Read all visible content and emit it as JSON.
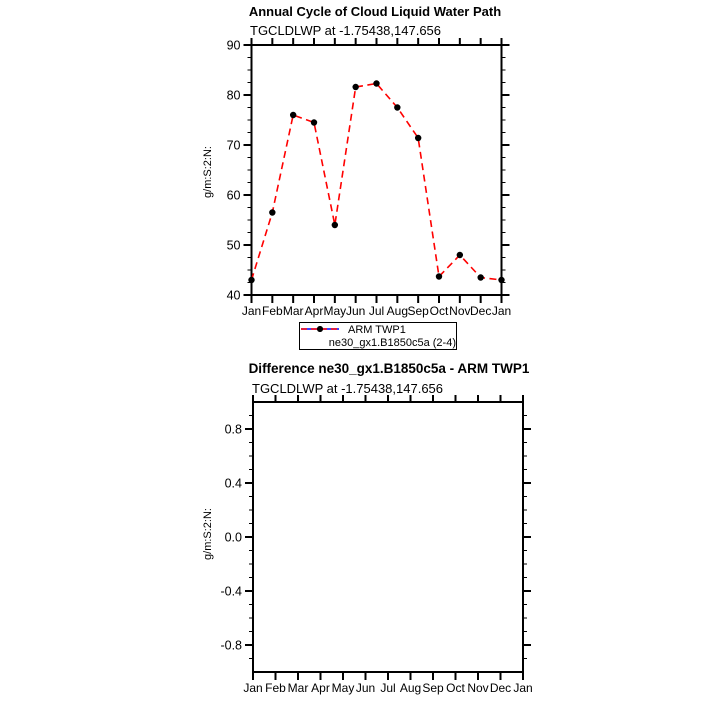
{
  "page": {
    "background": "#ffffff"
  },
  "chart_data": [
    {
      "type": "line",
      "title": "Annual Cycle of Cloud Liquid Water Path",
      "subtitle": "TGCLDLWP at -1.75438,147.656",
      "xlabel": "",
      "ylabel": "g/m:S:2:N:",
      "categories": [
        "Jan",
        "Feb",
        "Mar",
        "Apr",
        "May",
        "Jun",
        "Jul",
        "Aug",
        "Sep",
        "Oct",
        "Nov",
        "Dec",
        "Jan"
      ],
      "ylim": [
        40,
        90
      ],
      "ytick_values": [
        40,
        50,
        60,
        70,
        80,
        90
      ],
      "ytick_labels": [
        "40",
        "50",
        "60",
        "70",
        "80",
        "90"
      ],
      "yminor_step": 2.5,
      "grid": false,
      "legend_position": "below",
      "axis_color": "#000000",
      "series": [
        {
          "name": "ARM TWP1",
          "color": "#0000ff",
          "line_style": "solid",
          "marker": "filled-circle",
          "marker_color": "#000000",
          "values": []
        },
        {
          "name": "ne30_gx1.B1850c5a (2-4)",
          "color": "#ff0000",
          "line_style": "dashed",
          "marker": "filled-circle",
          "marker_color": "#000000",
          "values": [
            43.0,
            56.5,
            76.0,
            74.5,
            54.0,
            81.6,
            82.3,
            77.5,
            71.4,
            43.7,
            48.0,
            43.5,
            43.0
          ]
        }
      ]
    },
    {
      "type": "line",
      "title": "Difference ne30_gx1.B1850c5a - ARM TWP1",
      "subtitle": "TGCLDLWP at -1.75438,147.656",
      "xlabel": "",
      "ylabel": "g/m:S:2:N:",
      "categories": [
        "Jan",
        "Feb",
        "Mar",
        "Apr",
        "May",
        "Jun",
        "Jul",
        "Aug",
        "Sep",
        "Oct",
        "Nov",
        "Dec",
        "Jan"
      ],
      "ylim": [
        -1.0,
        1.0
      ],
      "ytick_values": [
        0.8,
        0.4,
        0.0,
        -0.4,
        -0.8
      ],
      "ytick_labels": [
        "0.8",
        "0.4",
        "0.0",
        "-0.4",
        "-0.8"
      ],
      "yminor_step": 0.1,
      "grid": false,
      "legend_position": "none",
      "axis_color": "#000000",
      "series": []
    }
  ]
}
